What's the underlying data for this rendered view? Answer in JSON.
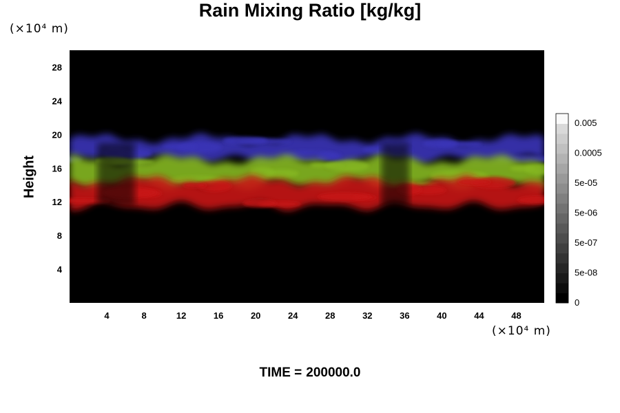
{
  "chart_data": {
    "type": "heatmap",
    "title": "Rain Mixing Ratio [kg/kg]",
    "xlabel": "",
    "ylabel": "Height",
    "x_unit": "(×10⁴ m)",
    "y_unit": "(×10⁴ m)",
    "xlim": [
      0,
      51
    ],
    "ylim": [
      0,
      30
    ],
    "x_ticks": [
      4,
      8,
      12,
      16,
      20,
      24,
      28,
      32,
      36,
      40,
      44,
      48
    ],
    "y_ticks": [
      4,
      8,
      12,
      16,
      20,
      24,
      28
    ],
    "background_color": "#000000",
    "bands": [
      {
        "color": "#3a36b8",
        "approx_height_range": [
          17,
          19.5
        ]
      },
      {
        "color": "#86b820",
        "approx_height_range": [
          14,
          17
        ]
      },
      {
        "color": "#c81818",
        "approx_height_range": [
          11.5,
          14.5
        ]
      }
    ],
    "colorbar": {
      "labels": [
        "0.005",
        "0.0005",
        "5e-05",
        "5e-06",
        "5e-07",
        "5e-08",
        "0"
      ],
      "colors": [
        "#000000",
        "#ffffff"
      ]
    },
    "footer": {
      "label": "TIME =",
      "value": "200000.0"
    }
  }
}
